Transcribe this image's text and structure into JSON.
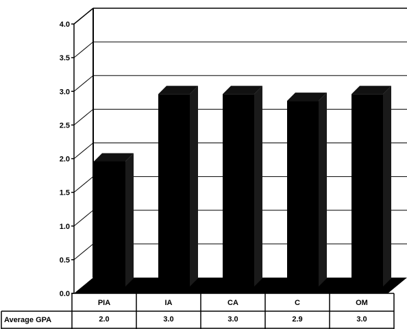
{
  "chart_data": {
    "type": "bar",
    "title": "",
    "xlabel": "",
    "ylabel": "",
    "categories": [
      "PIA",
      "IA",
      "CA",
      "C",
      "OM"
    ],
    "series": [
      {
        "name": "Average GPA",
        "values": [
          2.0,
          3.0,
          3.0,
          2.9,
          3.0
        ]
      }
    ],
    "ylim": [
      0,
      4.0
    ],
    "yticks": [
      "0.0",
      "0.5",
      "1.0",
      "1.5",
      "2.0",
      "2.5",
      "3.0",
      "3.5",
      "4.0"
    ],
    "data_table": {
      "row_label": "Average GPA",
      "cells": [
        "2.0",
        "3.0",
        "3.0",
        "2.9",
        "3.0"
      ]
    },
    "grid": true,
    "bar_color": "#000000",
    "style": "3d"
  }
}
